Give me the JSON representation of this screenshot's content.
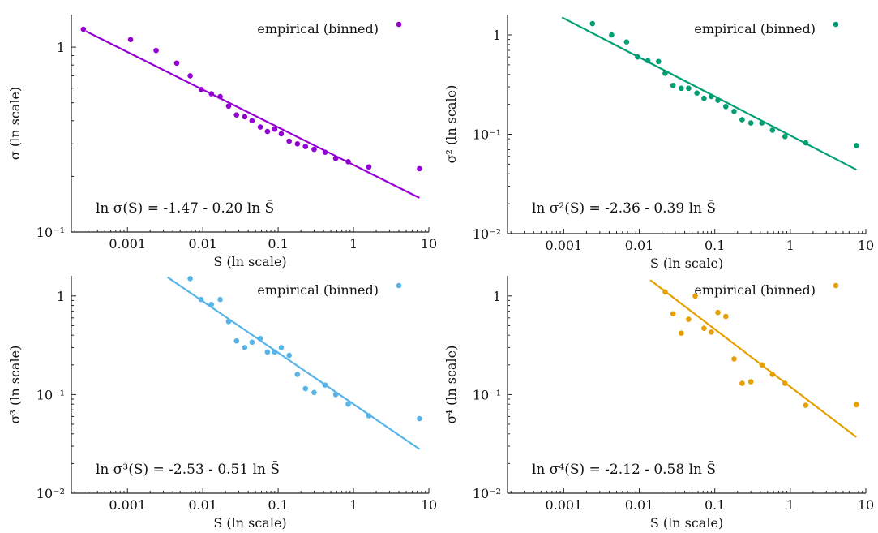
{
  "chart_data": [
    {
      "type": "scatter",
      "ylabel": "σ (ln scale)",
      "xlabel": "S (ln scale)",
      "legend": "empirical (binned)",
      "legend_position": "top-right",
      "color": "#9400d3",
      "equation": "ln σ(S) = -1.47 - 0.20 ln S̄",
      "xscale": "log",
      "yscale": "log",
      "xlim": [
        0.00018,
        10
      ],
      "ylim": [
        0.1,
        1.5
      ],
      "xticks": [
        {
          "v": 0.001,
          "label": "0.001"
        },
        {
          "v": 0.01,
          "label": "0.01"
        },
        {
          "v": 0.1,
          "label": "0.1"
        },
        {
          "v": 1,
          "label": "1"
        },
        {
          "v": 10,
          "label": "10"
        }
      ],
      "yticks": [
        {
          "v": 0.1,
          "label": "10⁻¹"
        },
        {
          "v": 1,
          "label": "1"
        }
      ],
      "fit": {
        "x": [
          0.00028,
          7.5
        ],
        "y": [
          1.22,
          0.153
        ]
      },
      "points": [
        {
          "x": 0.00026,
          "y": 1.25
        },
        {
          "x": 0.0011,
          "y": 1.1
        },
        {
          "x": 0.0024,
          "y": 0.96
        },
        {
          "x": 0.0045,
          "y": 0.82
        },
        {
          "x": 0.0068,
          "y": 0.7
        },
        {
          "x": 0.0095,
          "y": 0.59
        },
        {
          "x": 0.013,
          "y": 0.56
        },
        {
          "x": 0.017,
          "y": 0.54
        },
        {
          "x": 0.022,
          "y": 0.48
        },
        {
          "x": 0.028,
          "y": 0.43
        },
        {
          "x": 0.036,
          "y": 0.42
        },
        {
          "x": 0.045,
          "y": 0.4
        },
        {
          "x": 0.058,
          "y": 0.37
        },
        {
          "x": 0.072,
          "y": 0.35
        },
        {
          "x": 0.09,
          "y": 0.36
        },
        {
          "x": 0.11,
          "y": 0.34
        },
        {
          "x": 0.14,
          "y": 0.31
        },
        {
          "x": 0.18,
          "y": 0.3
        },
        {
          "x": 0.23,
          "y": 0.29
        },
        {
          "x": 0.3,
          "y": 0.28
        },
        {
          "x": 0.42,
          "y": 0.27
        },
        {
          "x": 0.58,
          "y": 0.25
        },
        {
          "x": 0.85,
          "y": 0.24
        },
        {
          "x": 1.6,
          "y": 0.225
        },
        {
          "x": 7.5,
          "y": 0.22
        }
      ]
    },
    {
      "type": "scatter",
      "ylabel": "σ² (ln scale)",
      "xlabel": "S (ln scale)",
      "legend": "empirical (binned)",
      "legend_position": "top-right",
      "color": "#009e73",
      "equation": "ln σ²(S) = -2.36 - 0.39 ln S̄",
      "xscale": "log",
      "yscale": "log",
      "xlim": [
        0.00018,
        10
      ],
      "ylim": [
        0.01,
        1.6
      ],
      "xticks": [
        {
          "v": 0.001,
          "label": "0.001"
        },
        {
          "v": 0.01,
          "label": "0.01"
        },
        {
          "v": 0.1,
          "label": "0.1"
        },
        {
          "v": 1,
          "label": "1"
        },
        {
          "v": 10,
          "label": "10"
        }
      ],
      "yticks": [
        {
          "v": 0.01,
          "label": "10⁻²"
        },
        {
          "v": 0.1,
          "label": "10⁻¹"
        },
        {
          "v": 1,
          "label": "1"
        }
      ],
      "fit": {
        "x": [
          0.00095,
          7.5
        ],
        "y": [
          1.5,
          0.044
        ]
      },
      "points": [
        {
          "x": 0.0024,
          "y": 1.3
        },
        {
          "x": 0.0043,
          "y": 1.0
        },
        {
          "x": 0.0068,
          "y": 0.85
        },
        {
          "x": 0.0095,
          "y": 0.6
        },
        {
          "x": 0.013,
          "y": 0.55
        },
        {
          "x": 0.018,
          "y": 0.54
        },
        {
          "x": 0.022,
          "y": 0.41
        },
        {
          "x": 0.028,
          "y": 0.31
        },
        {
          "x": 0.036,
          "y": 0.29
        },
        {
          "x": 0.045,
          "y": 0.29
        },
        {
          "x": 0.058,
          "y": 0.26
        },
        {
          "x": 0.072,
          "y": 0.23
        },
        {
          "x": 0.09,
          "y": 0.24
        },
        {
          "x": 0.11,
          "y": 0.22
        },
        {
          "x": 0.14,
          "y": 0.19
        },
        {
          "x": 0.18,
          "y": 0.17
        },
        {
          "x": 0.23,
          "y": 0.14
        },
        {
          "x": 0.3,
          "y": 0.13
        },
        {
          "x": 0.42,
          "y": 0.13
        },
        {
          "x": 0.58,
          "y": 0.11
        },
        {
          "x": 0.85,
          "y": 0.095
        },
        {
          "x": 1.6,
          "y": 0.082
        },
        {
          "x": 7.5,
          "y": 0.077
        }
      ]
    },
    {
      "type": "scatter",
      "ylabel": "σ³ (ln scale)",
      "xlabel": "S (ln scale)",
      "legend": "empirical (binned)",
      "legend_position": "top-right",
      "color": "#56b4e9",
      "equation": "ln σ³(S) = -2.53 - 0.51 ln S̄",
      "xscale": "log",
      "yscale": "log",
      "xlim": [
        0.00018,
        10
      ],
      "ylim": [
        0.01,
        1.6
      ],
      "xticks": [
        {
          "v": 0.001,
          "label": "0.001"
        },
        {
          "v": 0.01,
          "label": "0.01"
        },
        {
          "v": 0.1,
          "label": "0.1"
        },
        {
          "v": 1,
          "label": "1"
        },
        {
          "v": 10,
          "label": "10"
        }
      ],
      "yticks": [
        {
          "v": 0.01,
          "label": "10⁻²"
        },
        {
          "v": 0.1,
          "label": "10⁻¹"
        },
        {
          "v": 1,
          "label": "1"
        }
      ],
      "fit": {
        "x": [
          0.0034,
          7.5
        ],
        "y": [
          1.55,
          0.028
        ]
      },
      "points": [
        {
          "x": 0.0068,
          "y": 1.5
        },
        {
          "x": 0.0095,
          "y": 0.92
        },
        {
          "x": 0.013,
          "y": 0.82
        },
        {
          "x": 0.017,
          "y": 0.92
        },
        {
          "x": 0.022,
          "y": 0.55
        },
        {
          "x": 0.028,
          "y": 0.35
        },
        {
          "x": 0.036,
          "y": 0.3
        },
        {
          "x": 0.045,
          "y": 0.34
        },
        {
          "x": 0.058,
          "y": 0.37
        },
        {
          "x": 0.072,
          "y": 0.27
        },
        {
          "x": 0.09,
          "y": 0.27
        },
        {
          "x": 0.11,
          "y": 0.3
        },
        {
          "x": 0.14,
          "y": 0.25
        },
        {
          "x": 0.18,
          "y": 0.16
        },
        {
          "x": 0.23,
          "y": 0.115
        },
        {
          "x": 0.3,
          "y": 0.105
        },
        {
          "x": 0.42,
          "y": 0.125
        },
        {
          "x": 0.58,
          "y": 0.1
        },
        {
          "x": 0.85,
          "y": 0.08
        },
        {
          "x": 1.6,
          "y": 0.061
        },
        {
          "x": 7.5,
          "y": 0.057
        }
      ]
    },
    {
      "type": "scatter",
      "ylabel": "σ⁴ (ln scale)",
      "xlabel": "S (ln scale)",
      "legend": "empirical (binned)",
      "legend_position": "top-right",
      "color": "#e69f00",
      "equation": "ln σ⁴(S) = -2.12 - 0.58 ln S̄",
      "xscale": "log",
      "yscale": "log",
      "xlim": [
        0.00018,
        10
      ],
      "ylim": [
        0.01,
        1.6
      ],
      "xticks": [
        {
          "v": 0.001,
          "label": "0.001"
        },
        {
          "v": 0.01,
          "label": "0.01"
        },
        {
          "v": 0.1,
          "label": "0.1"
        },
        {
          "v": 1,
          "label": "1"
        },
        {
          "v": 10,
          "label": "10"
        }
      ],
      "yticks": [
        {
          "v": 0.01,
          "label": "10⁻²"
        },
        {
          "v": 0.1,
          "label": "10⁻¹"
        },
        {
          "v": 1,
          "label": "1"
        }
      ],
      "fit": {
        "x": [
          0.014,
          7.5
        ],
        "y": [
          1.45,
          0.037
        ]
      },
      "points": [
        {
          "x": 0.022,
          "y": 1.1
        },
        {
          "x": 0.028,
          "y": 0.66
        },
        {
          "x": 0.036,
          "y": 0.42
        },
        {
          "x": 0.045,
          "y": 0.58
        },
        {
          "x": 0.055,
          "y": 1.0
        },
        {
          "x": 0.072,
          "y": 0.47
        },
        {
          "x": 0.09,
          "y": 0.43
        },
        {
          "x": 0.11,
          "y": 0.68
        },
        {
          "x": 0.14,
          "y": 0.62
        },
        {
          "x": 0.18,
          "y": 0.23
        },
        {
          "x": 0.23,
          "y": 0.13
        },
        {
          "x": 0.3,
          "y": 0.135
        },
        {
          "x": 0.42,
          "y": 0.2
        },
        {
          "x": 0.58,
          "y": 0.16
        },
        {
          "x": 0.85,
          "y": 0.13
        },
        {
          "x": 1.6,
          "y": 0.078
        },
        {
          "x": 7.5,
          "y": 0.079
        }
      ]
    }
  ]
}
